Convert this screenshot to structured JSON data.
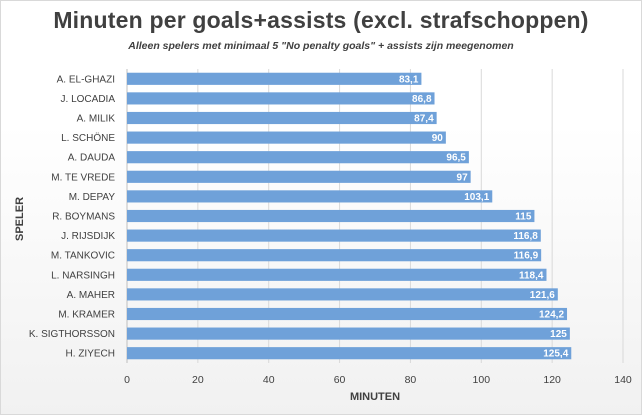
{
  "chart_data": {
    "type": "bar",
    "orientation": "horizontal",
    "title": "Minuten per goals+assists (excl. strafschoppen)",
    "subtitle": "Alleen spelers met minimaal 5 \"No penalty goals\" + assists zijn meegenomen",
    "xlabel": "MINUTEN",
    "ylabel": "SPELER",
    "xlim": [
      0,
      140
    ],
    "xticks": [
      0,
      20,
      40,
      60,
      80,
      100,
      120,
      140
    ],
    "grid": true,
    "legend": "none",
    "bar_color": "#6fa1d9",
    "categories": [
      "A. EL-GHAZI",
      "J. LOCADIA",
      "A. MILIK",
      "L. SCHÖNE",
      "A. DAUDA",
      "M. TE VREDE",
      "M. DEPAY",
      "R. BOYMANS",
      "J. RIJSDIJK",
      "M. TANKOVIC",
      "L. NARSINGH",
      "A. MAHER",
      "M. KRAMER",
      "K. SIGTHORSSON",
      "H. ZIYECH"
    ],
    "values": [
      83.1,
      86.8,
      87.4,
      90,
      96.5,
      97,
      103.1,
      115,
      116.8,
      116.9,
      118.4,
      121.6,
      124.2,
      125,
      125.4
    ],
    "value_labels": [
      "83,1",
      "86,8",
      "87,4",
      "90",
      "96,5",
      "97",
      "103,1",
      "115",
      "116,8",
      "116,9",
      "118,4",
      "121,6",
      "124,2",
      "125",
      "125,4"
    ]
  }
}
